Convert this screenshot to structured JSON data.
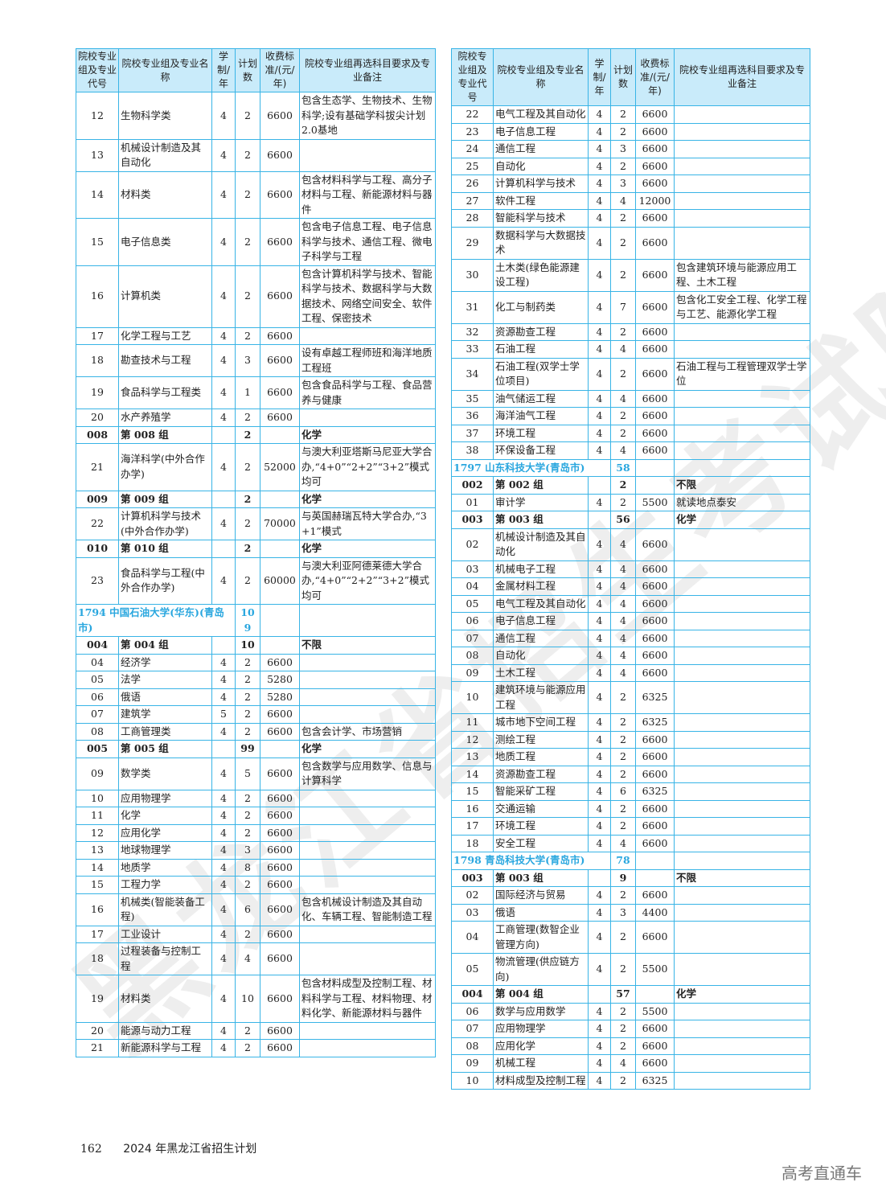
{
  "headers": [
    "院校专业组及专业代号",
    "院校专业组及专业名称",
    "学制/年",
    "计划数",
    "收费标准/(元/年)",
    "院校专业组再选科目要求及专业备注"
  ],
  "left_rows": [
    [
      "12",
      "生物科学类",
      "4",
      "2",
      "6600",
      "包含生态学、生物技术、生物科学;设有基础学科拔尖计划2.0基地",
      "m"
    ],
    [
      "13",
      "机械设计制造及其自动化",
      "4",
      "2",
      "6600",
      "",
      "m"
    ],
    [
      "14",
      "材料类",
      "4",
      "2",
      "6600",
      "包含材料科学与工程、高分子材料与工程、新能源材料与器件",
      "m"
    ],
    [
      "15",
      "电子信息类",
      "4",
      "2",
      "6600",
      "包含电子信息工程、电子信息科学与技术、通信工程、微电子科学与工程",
      "m"
    ],
    [
      "16",
      "计算机类",
      "4",
      "2",
      "6600",
      "包含计算机科学与技术、智能科学与技术、数据科学与大数据技术、网络空间安全、软件工程、保密技术",
      "m"
    ],
    [
      "17",
      "化学工程与工艺",
      "4",
      "2",
      "6600",
      "",
      "m"
    ],
    [
      "18",
      "勘查技术与工程",
      "4",
      "3",
      "6600",
      "设有卓越工程师班和海洋地质工程班",
      "m"
    ],
    [
      "19",
      "食品科学与工程类",
      "4",
      "1",
      "6600",
      "包含食品科学与工程、食品营养与健康",
      "m"
    ],
    [
      "20",
      "水产养殖学",
      "4",
      "2",
      "6600",
      "",
      "m"
    ],
    [
      "008",
      "第 008 组",
      "",
      "2",
      "",
      "化学",
      "g"
    ],
    [
      "21",
      "海洋科学(中外合作办学)",
      "4",
      "2",
      "52000",
      "与澳大利亚塔斯马尼亚大学合办,“4+0”“2+2”“3+2”模式均可",
      "m"
    ],
    [
      "009",
      "第 009 组",
      "",
      "2",
      "",
      "化学",
      "g"
    ],
    [
      "22",
      "计算机科学与技术(中外合作办学)",
      "4",
      "2",
      "70000",
      "与英国赫瑞瓦特大学合办,“3+1”模式",
      "m"
    ],
    [
      "010",
      "第 010 组",
      "",
      "2",
      "",
      "化学",
      "g"
    ],
    [
      "23",
      "食品科学与工程(中外合作办学)",
      "4",
      "2",
      "60000",
      "与澳大利亚阿德莱德大学合办,“4+0”“2+2”“3+2”模式均可",
      "m"
    ],
    [
      "1794 中国石油大学(华东)(青岛市)",
      "",
      "",
      "109",
      "",
      "",
      "s"
    ],
    [
      "004",
      "第 004 组",
      "",
      "10",
      "",
      "不限",
      "g"
    ],
    [
      "04",
      "经济学",
      "4",
      "2",
      "6600",
      "",
      "m"
    ],
    [
      "05",
      "法学",
      "4",
      "2",
      "5280",
      "",
      "m"
    ],
    [
      "06",
      "俄语",
      "4",
      "2",
      "5280",
      "",
      "m"
    ],
    [
      "07",
      "建筑学",
      "5",
      "2",
      "6600",
      "",
      "m"
    ],
    [
      "08",
      "工商管理类",
      "4",
      "2",
      "6600",
      "包含会计学、市场营销",
      "m"
    ],
    [
      "005",
      "第 005 组",
      "",
      "99",
      "",
      "化学",
      "g"
    ],
    [
      "09",
      "数学类",
      "4",
      "5",
      "6600",
      "包含数学与应用数学、信息与计算科学",
      "m"
    ],
    [
      "10",
      "应用物理学",
      "4",
      "2",
      "6600",
      "",
      "m"
    ],
    [
      "11",
      "化学",
      "4",
      "2",
      "6600",
      "",
      "m"
    ],
    [
      "12",
      "应用化学",
      "4",
      "2",
      "6600",
      "",
      "m"
    ],
    [
      "13",
      "地球物理学",
      "4",
      "3",
      "6600",
      "",
      "m"
    ],
    [
      "14",
      "地质学",
      "4",
      "8",
      "6600",
      "",
      "m"
    ],
    [
      "15",
      "工程力学",
      "4",
      "2",
      "6600",
      "",
      "m"
    ],
    [
      "16",
      "机械类(智能装备工程)",
      "4",
      "6",
      "6600",
      "包含机械设计制造及其自动化、车辆工程、智能制造工程",
      "m"
    ],
    [
      "17",
      "工业设计",
      "4",
      "2",
      "6600",
      "",
      "m"
    ],
    [
      "18",
      "过程装备与控制工程",
      "4",
      "4",
      "6600",
      "",
      "m"
    ],
    [
      "19",
      "材料类",
      "4",
      "10",
      "6600",
      "包含材料成型及控制工程、材料科学与工程、材料物理、材料化学、新能源材料与器件",
      "m"
    ],
    [
      "20",
      "能源与动力工程",
      "4",
      "2",
      "6600",
      "",
      "m"
    ],
    [
      "21",
      "新能源科学与工程",
      "4",
      "2",
      "6600",
      "",
      "m"
    ]
  ],
  "right_rows": [
    [
      "22",
      "电气工程及其自动化",
      "4",
      "2",
      "6600",
      "",
      "m"
    ],
    [
      "23",
      "电子信息工程",
      "4",
      "2",
      "6600",
      "",
      "m"
    ],
    [
      "24",
      "通信工程",
      "4",
      "3",
      "6600",
      "",
      "m"
    ],
    [
      "25",
      "自动化",
      "4",
      "2",
      "6600",
      "",
      "m"
    ],
    [
      "26",
      "计算机科学与技术",
      "4",
      "3",
      "6600",
      "",
      "m"
    ],
    [
      "27",
      "软件工程",
      "4",
      "4",
      "12000",
      "",
      "m"
    ],
    [
      "28",
      "智能科学与技术",
      "4",
      "2",
      "6600",
      "",
      "m"
    ],
    [
      "29",
      "数据科学与大数据技术",
      "4",
      "2",
      "6600",
      "",
      "m"
    ],
    [
      "30",
      "土木类(绿色能源建设工程)",
      "4",
      "2",
      "6600",
      "包含建筑环境与能源应用工程、土木工程",
      "m"
    ],
    [
      "31",
      "化工与制药类",
      "4",
      "7",
      "6600",
      "包含化工安全工程、化学工程与工艺、能源化学工程",
      "m"
    ],
    [
      "32",
      "资源勘查工程",
      "4",
      "2",
      "6600",
      "",
      "m"
    ],
    [
      "33",
      "石油工程",
      "4",
      "4",
      "6600",
      "",
      "m"
    ],
    [
      "34",
      "石油工程(双学士学位项目)",
      "4",
      "2",
      "6600",
      "石油工程与工程管理双学士学位",
      "m"
    ],
    [
      "35",
      "油气储运工程",
      "4",
      "4",
      "6600",
      "",
      "m"
    ],
    [
      "36",
      "海洋油气工程",
      "4",
      "2",
      "6600",
      "",
      "m"
    ],
    [
      "37",
      "环境工程",
      "4",
      "2",
      "6600",
      "",
      "m"
    ],
    [
      "38",
      "环保设备工程",
      "4",
      "4",
      "6600",
      "",
      "m"
    ],
    [
      "1797 山东科技大学(青岛市)",
      "",
      "",
      "58",
      "",
      "",
      "s"
    ],
    [
      "002",
      "第 002 组",
      "",
      "2",
      "",
      "不限",
      "g"
    ],
    [
      "01",
      "审计学",
      "4",
      "2",
      "5500",
      "就读地点泰安",
      "m"
    ],
    [
      "003",
      "第 003 组",
      "",
      "56",
      "",
      "化学",
      "g"
    ],
    [
      "02",
      "机械设计制造及其自动化",
      "4",
      "4",
      "6600",
      "",
      "m"
    ],
    [
      "03",
      "机械电子工程",
      "4",
      "4",
      "6600",
      "",
      "m"
    ],
    [
      "04",
      "金属材料工程",
      "4",
      "4",
      "6600",
      "",
      "m"
    ],
    [
      "05",
      "电气工程及其自动化",
      "4",
      "4",
      "6600",
      "",
      "m"
    ],
    [
      "06",
      "电子信息工程",
      "4",
      "4",
      "6600",
      "",
      "m"
    ],
    [
      "07",
      "通信工程",
      "4",
      "4",
      "6600",
      "",
      "m"
    ],
    [
      "08",
      "自动化",
      "4",
      "4",
      "6600",
      "",
      "m"
    ],
    [
      "09",
      "土木工程",
      "4",
      "4",
      "6600",
      "",
      "m"
    ],
    [
      "10",
      "建筑环境与能源应用工程",
      "4",
      "2",
      "6325",
      "",
      "m"
    ],
    [
      "11",
      "城市地下空间工程",
      "4",
      "2",
      "6325",
      "",
      "m"
    ],
    [
      "12",
      "测绘工程",
      "4",
      "2",
      "6600",
      "",
      "m"
    ],
    [
      "13",
      "地质工程",
      "4",
      "2",
      "6600",
      "",
      "m"
    ],
    [
      "14",
      "资源勘查工程",
      "4",
      "2",
      "6600",
      "",
      "m"
    ],
    [
      "15",
      "智能采矿工程",
      "4",
      "6",
      "6325",
      "",
      "m"
    ],
    [
      "16",
      "交通运输",
      "4",
      "2",
      "6600",
      "",
      "m"
    ],
    [
      "17",
      "环境工程",
      "4",
      "2",
      "6600",
      "",
      "m"
    ],
    [
      "18",
      "安全工程",
      "4",
      "4",
      "6600",
      "",
      "m"
    ],
    [
      "1798 青岛科技大学(青岛市)",
      "",
      "",
      "78",
      "",
      "",
      "s"
    ],
    [
      "003",
      "第 003 组",
      "",
      "9",
      "",
      "不限",
      "g"
    ],
    [
      "02",
      "国际经济与贸易",
      "4",
      "2",
      "6600",
      "",
      "m"
    ],
    [
      "03",
      "俄语",
      "4",
      "3",
      "4400",
      "",
      "m"
    ],
    [
      "04",
      "工商管理(数智企业管理方向)",
      "4",
      "2",
      "6600",
      "",
      "m"
    ],
    [
      "05",
      "物流管理(供应链方向)",
      "4",
      "2",
      "5500",
      "",
      "m"
    ],
    [
      "004",
      "第 004 组",
      "",
      "57",
      "",
      "化学",
      "g"
    ],
    [
      "06",
      "数学与应用数学",
      "4",
      "2",
      "5500",
      "",
      "m"
    ],
    [
      "07",
      "应用物理学",
      "4",
      "2",
      "6600",
      "",
      "m"
    ],
    [
      "08",
      "应用化学",
      "4",
      "2",
      "6600",
      "",
      "m"
    ],
    [
      "09",
      "机械工程",
      "4",
      "4",
      "6600",
      "",
      "m"
    ],
    [
      "10",
      "材料成型及控制工程",
      "4",
      "2",
      "6325",
      "",
      "m"
    ]
  ],
  "footer": {
    "page_number": "162",
    "title": "2024 年黑龙江省招生计划"
  },
  "watermark": "黑龙江省招生考试院",
  "brand": "高考直通车",
  "colors": {
    "border": "#38b4e6",
    "header_bg": "#c9ebfa",
    "school_text": "#2aa7df"
  }
}
